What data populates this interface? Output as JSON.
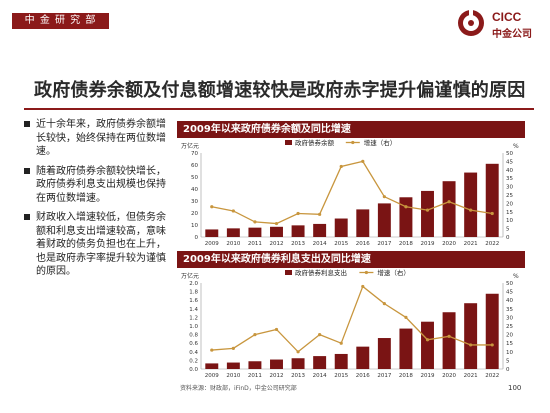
{
  "header": {
    "dept_label": "中 金 研 究 部",
    "logo_brand": "CICC",
    "logo_cn": "中金公司"
  },
  "slide": {
    "title": "政府债券余额及付息额增速较快是政府赤字提升偏谨慎的原因"
  },
  "bullets": [
    "近十余年来，政府债券余额增长较快，始终保持在两位数增速。",
    "随着政府债券余额较快增长，政府债券利息支出规模也保持在两位数增速。",
    "财政收入增速较低，但债务余额和利息支出增速较高，意味着财政的债务负担也在上升，也是政府赤字率提升较为谨慎的原因。"
  ],
  "source": "资料来源：财政部，iFinD，中金公司研究部",
  "page_number": "100",
  "colors": {
    "bar": "#7a1414",
    "line": "#c8963e",
    "panel": "#7a1414"
  },
  "chart_data": [
    {
      "type": "bar",
      "title": "2009年以来政府债券余额及同比增速",
      "ylabel": "万亿元",
      "y2label": "%",
      "ylim": [
        0,
        70
      ],
      "yticks": [
        0,
        10,
        20,
        30,
        40,
        50,
        60,
        70
      ],
      "y2lim": [
        0,
        50
      ],
      "y2ticks": [
        0,
        5,
        10,
        15,
        20,
        25,
        30,
        35,
        40,
        45,
        50
      ],
      "categories": [
        "2009",
        "2010",
        "2011",
        "2012",
        "2013",
        "2014",
        "2015",
        "2016",
        "2017",
        "2018",
        "2019",
        "2020",
        "2021",
        "2022"
      ],
      "series": [
        {
          "name": "政府债券余额",
          "kind": "bar",
          "axis": "left",
          "values": [
            6.3,
            7.2,
            7.8,
            8.5,
            9.7,
            10.9,
            15.4,
            23.0,
            28.0,
            33.1,
            38.4,
            46.5,
            53.7,
            61.0
          ]
        },
        {
          "name": "增速（右）",
          "kind": "line",
          "axis": "right",
          "values": [
            18,
            15.5,
            9,
            8,
            14,
            13.5,
            42,
            45,
            24,
            18,
            16,
            21,
            16,
            14
          ]
        }
      ],
      "legend": "top-right"
    },
    {
      "type": "bar",
      "title": "2009年以来政府债券利息支出及同比增速",
      "ylabel": "万亿元",
      "y2label": "%",
      "ylim": [
        0,
        2.0
      ],
      "yticks": [
        0,
        0.2,
        0.4,
        0.6,
        0.8,
        1.0,
        1.2,
        1.4,
        1.6,
        1.8,
        2.0
      ],
      "y2lim": [
        0,
        50
      ],
      "y2ticks": [
        0,
        5,
        10,
        15,
        20,
        25,
        30,
        35,
        40,
        45,
        50
      ],
      "categories": [
        "2009",
        "2010",
        "2011",
        "2012",
        "2013",
        "2014",
        "2015",
        "2016",
        "2017",
        "2018",
        "2019",
        "2020",
        "2021",
        "2022"
      ],
      "series": [
        {
          "name": "政府债券利息支出",
          "kind": "bar",
          "axis": "left",
          "values": [
            0.13,
            0.15,
            0.18,
            0.22,
            0.25,
            0.3,
            0.35,
            0.52,
            0.72,
            0.94,
            1.1,
            1.32,
            1.53,
            1.75
          ]
        },
        {
          "name": "增速（右）",
          "kind": "line",
          "axis": "right",
          "values": [
            11,
            12,
            20,
            23,
            10,
            20,
            15,
            48,
            38,
            30,
            17,
            19,
            14,
            14
          ]
        }
      ],
      "legend": "top-right"
    }
  ]
}
